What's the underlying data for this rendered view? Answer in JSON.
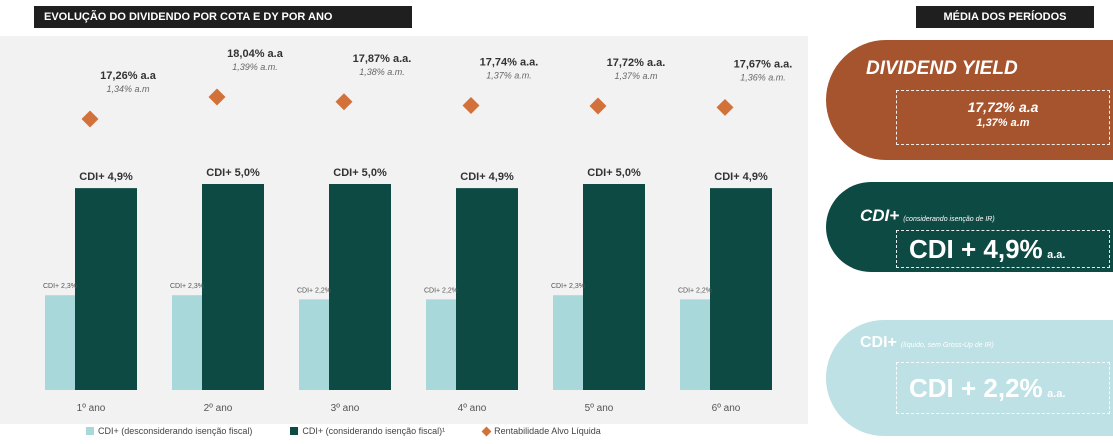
{
  "left_header": "EVOLUÇÃO DO DIVIDENDO POR COTA E DY POR ANO",
  "right_header": "MÉDIA DOS PERÍODOS",
  "colors": {
    "light_bar": "#a9d8da",
    "dark_bar": "#0e4a44",
    "diamond": "#d2723a",
    "card_dy": "#a5542d",
    "card_cdi": "#0e4a44",
    "card_cdi_light": "#bde1e4"
  },
  "chart_data": {
    "type": "bar",
    "categories": [
      "1º ano",
      "2º ano",
      "3º ano",
      "4º ano",
      "5º ano",
      "6º ano"
    ],
    "series": [
      {
        "name": "CDI+ (desconsiderando isenção fiscal)",
        "values": [
          2.3,
          2.3,
          2.2,
          2.2,
          2.3,
          2.2
        ],
        "labels": [
          "CDI+ 2,3%",
          "CDI+ 2,3%",
          "CDI+ 2,2%",
          "CDI+ 2,2%",
          "CDI+ 2,3%",
          "CDI+ 2,2%"
        ]
      },
      {
        "name": "CDI+ (considerando isenção fiscal)¹",
        "values": [
          4.9,
          5.0,
          5.0,
          4.9,
          5.0,
          4.9
        ],
        "labels": [
          "CDI+ 4,9%",
          "CDI+ 5,0%",
          "CDI+ 5,0%",
          "CDI+ 4,9%",
          "CDI+ 5,0%",
          "CDI+ 4,9%"
        ]
      },
      {
        "name": "Rentabilidade Alvo Líquida",
        "values": [
          17.26,
          18.04,
          17.87,
          17.74,
          17.72,
          17.67
        ],
        "labels_aa": [
          "17,26% a.a",
          "18,04% a.a",
          "17,87% a.a.",
          "17,74% a.a.",
          "17,72% a.a.",
          "17,67% a.a."
        ],
        "labels_am": [
          "1,34% a.m",
          "1,39% a.m.",
          "1,38% a.m.",
          "1,37% a.m.",
          "1,37% a.m",
          "1,36% a.m."
        ]
      }
    ]
  },
  "cards": {
    "dy": {
      "title": "DIVIDEND YIELD",
      "line1": "17,72% a.a",
      "line2": "1,37% a.m"
    },
    "cdi": {
      "title": "CDI+",
      "note": "(considerando isenção de IR)",
      "value": "CDI + 4,9%",
      "unit": "a.a."
    },
    "cdi_light": {
      "title": "CDI+",
      "note": "(líquido, sem Gross-Up de IR)",
      "value": "CDI + 2,2%",
      "unit": "a.a."
    }
  }
}
